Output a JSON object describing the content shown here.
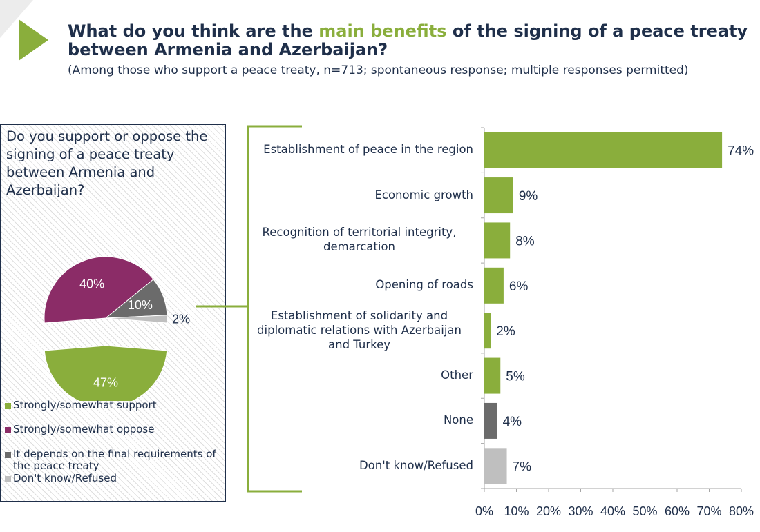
{
  "title": {
    "before": "What do you think are the ",
    "accent": "main benefits",
    "after": " of the signing of a peace treaty between Armenia and Azerbaijan?"
  },
  "subtitle": "(Among those who support a peace treaty, n=713; spontaneous response; multiple responses permitted)",
  "colors": {
    "accent": "#8aae3c",
    "navy": "#1f2f4a",
    "support": "#8aae3c",
    "oppose": "#8b2c67",
    "depends": "#6b6b6b",
    "dont_know": "#bfbfbf"
  },
  "pie_panel": {
    "question": "Do you support or oppose the signing of a peace treaty between Armenia and Azerbaijan?",
    "legend": [
      {
        "label": "Strongly/somewhat support",
        "color": "#8aae3c"
      },
      {
        "label": "Strongly/somewhat oppose",
        "color": "#8b2c67"
      },
      {
        "label": "It depends on the final requirements of the peace treaty",
        "color": "#6b6b6b"
      },
      {
        "label": "Don't know/Refused",
        "color": "#bfbfbf"
      }
    ]
  },
  "chart_data": [
    {
      "type": "pie",
      "slices": [
        {
          "label": "Strongly/somewhat support",
          "value": 47,
          "display": "47%",
          "color": "#8aae3c",
          "exploded": true
        },
        {
          "label": "Strongly/somewhat oppose",
          "value": 40,
          "display": "40%",
          "color": "#8b2c67"
        },
        {
          "label": "It depends on the final requirements of the peace treaty",
          "value": 10,
          "display": "10%",
          "color": "#6b6b6b"
        },
        {
          "label": "Don't know/Refused",
          "value": 2,
          "display": "2%",
          "color": "#bfbfbf"
        }
      ]
    },
    {
      "type": "bar",
      "orientation": "horizontal",
      "categories": [
        [
          "Establishment of peace in the region"
        ],
        [
          "Economic growth"
        ],
        [
          "Recognition of territorial integrity,",
          "demarcation"
        ],
        [
          "Opening of roads"
        ],
        [
          "Establishment of solidarity and",
          "diplomatic relations with Azerbaijan",
          "and Turkey"
        ],
        [
          "Other"
        ],
        [
          "None"
        ],
        [
          "Don't know/Refused"
        ]
      ],
      "values": [
        74,
        9,
        8,
        6,
        2,
        5,
        4,
        7
      ],
      "value_labels": [
        "74%",
        "9%",
        "8%",
        "6%",
        "2%",
        "5%",
        "4%",
        "7%"
      ],
      "bar_colors": [
        "#8aae3c",
        "#8aae3c",
        "#8aae3c",
        "#8aae3c",
        "#8aae3c",
        "#8aae3c",
        "#6b6b6b",
        "#bfbfbf"
      ],
      "xlim": [
        0,
        80
      ],
      "x_ticks": [
        0,
        10,
        20,
        30,
        40,
        50,
        60,
        70,
        80
      ],
      "x_tick_labels": [
        "0%",
        "10%",
        "20%",
        "30%",
        "40%",
        "50%",
        "60%",
        "70%",
        "80%"
      ],
      "grid": false
    }
  ]
}
